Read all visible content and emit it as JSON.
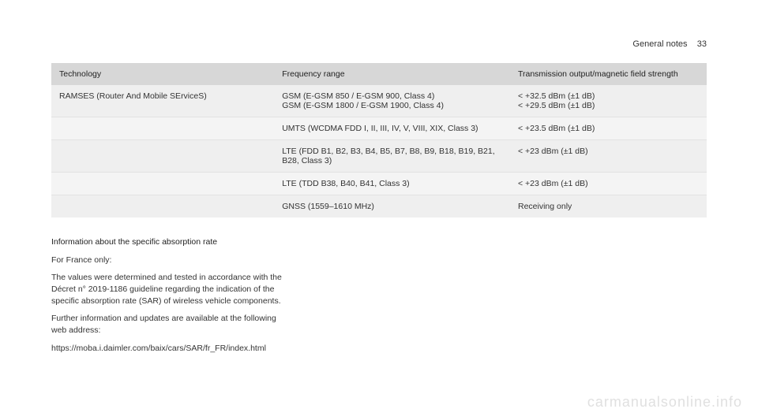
{
  "header": {
    "section": "General notes",
    "page": "33"
  },
  "table": {
    "columns": [
      "Technology",
      "Frequency range",
      "Transmission output/magnetic field strength"
    ],
    "rows": [
      {
        "tech": "RAMSES (Router And Mobile SErviceS)",
        "freq": "GSM (E-GSM 850 / E-GSM 900, Class 4)\nGSM (E-GSM 1800 / E-GSM 1900, Class 4)",
        "out": "< +32.5 dBm (±1 dB)\n< +29.5 dBm (±1 dB)"
      },
      {
        "tech": "",
        "freq": "UMTS (WCDMA FDD I, II, III, IV, V, VIII, XIX, Class 3)",
        "out": "< +23.5 dBm (±1 dB)"
      },
      {
        "tech": "",
        "freq": "LTE (FDD B1, B2, B3, B4, B5, B7, B8, B9, B18, B19, B21, B28, Class 3)",
        "out": "< +23 dBm (±1 dB)"
      },
      {
        "tech": "",
        "freq": "LTE (TDD B38, B40, B41, Class 3)",
        "out": "< +23 dBm (±1 dB)"
      },
      {
        "tech": "",
        "freq": "GNSS (1559–1610 MHz)",
        "out": "Receiving only"
      }
    ]
  },
  "body": {
    "subhead": "Information about the specific absorption rate",
    "p1": "For France only:",
    "p2": "The values were determined and tested in accordance with the Décret n° 2019-1186 guideline regarding the indication of the specific absorption rate (SAR) of wireless vehicle components.",
    "p3": "Further information and updates are available at the following web address:",
    "p4": "https://moba.i.daimler.com/baix/cars/SAR/fr_FR/index.html"
  },
  "watermark": "carmanualsonline.info"
}
